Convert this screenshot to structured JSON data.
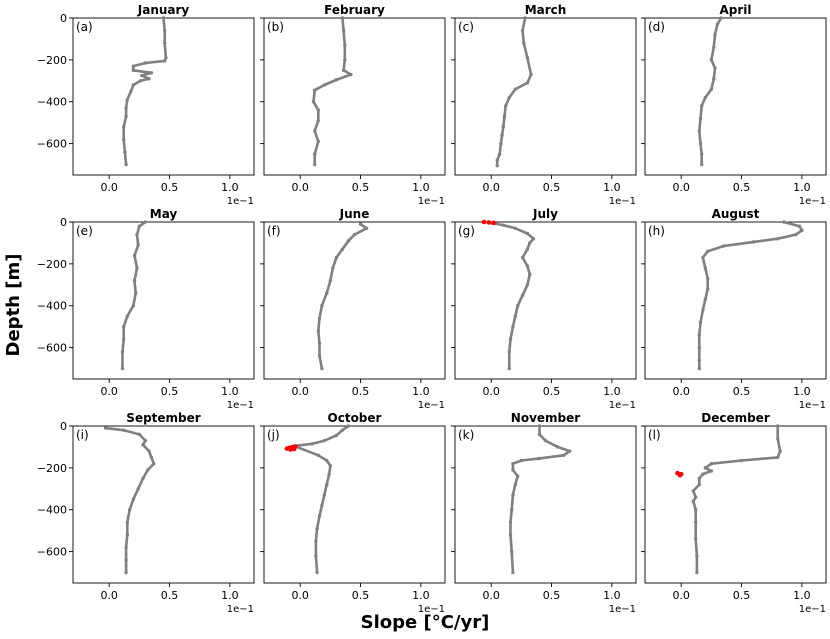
{
  "chart_data": {
    "type": "scatter",
    "xlabel": "Slope [°C/yr]",
    "ylabel": "Depth [m]",
    "xlim": [
      -0.03,
      0.12
    ],
    "ylim": [
      -750,
      0
    ],
    "xticks": [
      0.0,
      0.05,
      0.1
    ],
    "xtick_labels": [
      "0.0",
      "0.5",
      "1.0"
    ],
    "yticks": [
      0,
      -200,
      -400,
      -600
    ],
    "ytick_labels": [
      "0",
      "−200",
      "−400",
      "−600"
    ],
    "x_scale_label": "1e−1",
    "colors": {
      "normal": "#808080",
      "highlight": "#ff0000"
    },
    "panels": [
      {
        "letter": "(a)",
        "title": "January",
        "profile": [
          [
            0.045,
            0
          ],
          [
            0.046,
            -60
          ],
          [
            0.046,
            -120
          ],
          [
            0.047,
            -190
          ],
          [
            0.046,
            -205
          ],
          [
            0.03,
            -215
          ],
          [
            0.02,
            -230
          ],
          [
            0.02,
            -250
          ],
          [
            0.035,
            -262
          ],
          [
            0.027,
            -275
          ],
          [
            0.033,
            -290
          ],
          [
            0.026,
            -300
          ],
          [
            0.02,
            -320
          ],
          [
            0.018,
            -350
          ],
          [
            0.015,
            -390
          ],
          [
            0.014,
            -430
          ],
          [
            0.014,
            -470
          ],
          [
            0.012,
            -520
          ],
          [
            0.012,
            -580
          ],
          [
            0.013,
            -640
          ],
          [
            0.014,
            -700
          ]
        ],
        "highlight": []
      },
      {
        "letter": "(b)",
        "title": "February",
        "profile": [
          [
            0.035,
            0
          ],
          [
            0.036,
            -60
          ],
          [
            0.037,
            -130
          ],
          [
            0.037,
            -200
          ],
          [
            0.036,
            -250
          ],
          [
            0.042,
            -270
          ],
          [
            0.03,
            -295
          ],
          [
            0.02,
            -320
          ],
          [
            0.012,
            -345
          ],
          [
            0.011,
            -400
          ],
          [
            0.015,
            -440
          ],
          [
            0.015,
            -490
          ],
          [
            0.012,
            -540
          ],
          [
            0.015,
            -590
          ],
          [
            0.012,
            -650
          ],
          [
            0.012,
            -700
          ]
        ],
        "highlight": []
      },
      {
        "letter": "(c)",
        "title": "March",
        "profile": [
          [
            0.028,
            0
          ],
          [
            0.026,
            -60
          ],
          [
            0.027,
            -120
          ],
          [
            0.03,
            -190
          ],
          [
            0.033,
            -270
          ],
          [
            0.03,
            -310
          ],
          [
            0.02,
            -340
          ],
          [
            0.015,
            -380
          ],
          [
            0.012,
            -420
          ],
          [
            0.011,
            -470
          ],
          [
            0.01,
            -520
          ],
          [
            0.009,
            -560
          ],
          [
            0.008,
            -600
          ],
          [
            0.007,
            -650
          ],
          [
            0.005,
            -680
          ],
          [
            0.005,
            -705
          ]
        ],
        "highlight": []
      },
      {
        "letter": "(d)",
        "title": "April",
        "profile": [
          [
            0.033,
            0
          ],
          [
            0.03,
            -30
          ],
          [
            0.028,
            -80
          ],
          [
            0.027,
            -140
          ],
          [
            0.025,
            -200
          ],
          [
            0.028,
            -240
          ],
          [
            0.027,
            -290
          ],
          [
            0.025,
            -340
          ],
          [
            0.02,
            -380
          ],
          [
            0.017,
            -420
          ],
          [
            0.016,
            -480
          ],
          [
            0.015,
            -540
          ],
          [
            0.016,
            -600
          ],
          [
            0.017,
            -650
          ],
          [
            0.017,
            -700
          ]
        ],
        "highlight": []
      },
      {
        "letter": "(e)",
        "title": "May",
        "profile": [
          [
            0.03,
            0
          ],
          [
            0.025,
            -20
          ],
          [
            0.023,
            -60
          ],
          [
            0.024,
            -110
          ],
          [
            0.021,
            -160
          ],
          [
            0.023,
            -220
          ],
          [
            0.021,
            -280
          ],
          [
            0.022,
            -340
          ],
          [
            0.02,
            -400
          ],
          [
            0.015,
            -450
          ],
          [
            0.012,
            -500
          ],
          [
            0.012,
            -560
          ],
          [
            0.011,
            -620
          ],
          [
            0.011,
            -700
          ]
        ],
        "highlight": []
      },
      {
        "letter": "(f)",
        "title": "June",
        "profile": [
          [
            0.05,
            -10
          ],
          [
            0.055,
            -30
          ],
          [
            0.045,
            -60
          ],
          [
            0.04,
            -90
          ],
          [
            0.035,
            -130
          ],
          [
            0.03,
            -170
          ],
          [
            0.027,
            -220
          ],
          [
            0.025,
            -280
          ],
          [
            0.022,
            -340
          ],
          [
            0.018,
            -400
          ],
          [
            0.016,
            -460
          ],
          [
            0.015,
            -520
          ],
          [
            0.016,
            -580
          ],
          [
            0.016,
            -640
          ],
          [
            0.018,
            -700
          ]
        ],
        "highlight": []
      },
      {
        "letter": "(g)",
        "title": "July",
        "profile": [
          [
            0.0,
            -5
          ],
          [
            0.01,
            -15
          ],
          [
            0.02,
            -30
          ],
          [
            0.03,
            -55
          ],
          [
            0.035,
            -80
          ],
          [
            0.032,
            -100
          ],
          [
            0.03,
            -130
          ],
          [
            0.026,
            -170
          ],
          [
            0.03,
            -210
          ],
          [
            0.032,
            -250
          ],
          [
            0.03,
            -300
          ],
          [
            0.026,
            -350
          ],
          [
            0.022,
            -400
          ],
          [
            0.02,
            -450
          ],
          [
            0.018,
            -500
          ],
          [
            0.016,
            -560
          ],
          [
            0.015,
            -620
          ],
          [
            0.015,
            -700
          ]
        ],
        "highlight": [
          [
            -0.006,
            0
          ],
          [
            -0.002,
            -2
          ],
          [
            0.002,
            -4
          ]
        ]
      },
      {
        "letter": "(h)",
        "title": "August",
        "profile": [
          [
            0.085,
            0
          ],
          [
            0.098,
            -20
          ],
          [
            0.1,
            -40
          ],
          [
            0.095,
            -60
          ],
          [
            0.08,
            -80
          ],
          [
            0.06,
            -95
          ],
          [
            0.035,
            -115
          ],
          [
            0.022,
            -140
          ],
          [
            0.018,
            -170
          ],
          [
            0.02,
            -220
          ],
          [
            0.022,
            -270
          ],
          [
            0.022,
            -320
          ],
          [
            0.02,
            -370
          ],
          [
            0.018,
            -420
          ],
          [
            0.016,
            -480
          ],
          [
            0.015,
            -540
          ],
          [
            0.015,
            -600
          ],
          [
            0.015,
            -660
          ],
          [
            0.015,
            -700
          ]
        ],
        "highlight": []
      },
      {
        "letter": "(i)",
        "title": "September",
        "profile": [
          [
            -0.003,
            -10
          ],
          [
            0.012,
            -20
          ],
          [
            0.025,
            -40
          ],
          [
            0.03,
            -70
          ],
          [
            0.028,
            -90
          ],
          [
            0.033,
            -120
          ],
          [
            0.035,
            -150
          ],
          [
            0.037,
            -180
          ],
          [
            0.032,
            -210
          ],
          [
            0.028,
            -250
          ],
          [
            0.024,
            -300
          ],
          [
            0.02,
            -350
          ],
          [
            0.017,
            -400
          ],
          [
            0.015,
            -460
          ],
          [
            0.015,
            -520
          ],
          [
            0.014,
            -580
          ],
          [
            0.014,
            -640
          ],
          [
            0.014,
            -700
          ]
        ],
        "highlight": []
      },
      {
        "letter": "(j)",
        "title": "October",
        "profile": [
          [
            0.04,
            0
          ],
          [
            0.035,
            -20
          ],
          [
            0.03,
            -45
          ],
          [
            0.02,
            -70
          ],
          [
            0.01,
            -85
          ],
          [
            -0.005,
            -95
          ],
          [
            0.015,
            -140
          ],
          [
            0.022,
            -165
          ],
          [
            0.025,
            -190
          ],
          [
            0.024,
            -230
          ],
          [
            0.022,
            -280
          ],
          [
            0.02,
            -330
          ],
          [
            0.018,
            -380
          ],
          [
            0.016,
            -430
          ],
          [
            0.014,
            -490
          ],
          [
            0.013,
            -550
          ],
          [
            0.013,
            -620
          ],
          [
            0.014,
            -700
          ]
        ],
        "highlight": [
          [
            -0.004,
            -98
          ],
          [
            -0.007,
            -102
          ],
          [
            -0.009,
            -105
          ],
          [
            -0.011,
            -108
          ],
          [
            -0.008,
            -112
          ],
          [
            -0.005,
            -110
          ]
        ]
      },
      {
        "letter": "(k)",
        "title": "November",
        "profile": [
          [
            0.04,
            0
          ],
          [
            0.04,
            -40
          ],
          [
            0.045,
            -70
          ],
          [
            0.055,
            -100
          ],
          [
            0.065,
            -120
          ],
          [
            0.06,
            -140
          ],
          [
            0.04,
            -155
          ],
          [
            0.025,
            -165
          ],
          [
            0.018,
            -180
          ],
          [
            0.018,
            -210
          ],
          [
            0.022,
            -240
          ],
          [
            0.02,
            -280
          ],
          [
            0.018,
            -330
          ],
          [
            0.017,
            -400
          ],
          [
            0.016,
            -460
          ],
          [
            0.016,
            -520
          ],
          [
            0.017,
            -600
          ],
          [
            0.018,
            -700
          ]
        ],
        "highlight": []
      },
      {
        "letter": "(l)",
        "title": "December",
        "profile": [
          [
            0.08,
            0
          ],
          [
            0.08,
            -60
          ],
          [
            0.082,
            -120
          ],
          [
            0.08,
            -150
          ],
          [
            0.05,
            -165
          ],
          [
            0.025,
            -180
          ],
          [
            0.02,
            -200
          ],
          [
            0.025,
            -215
          ],
          [
            0.018,
            -230
          ],
          [
            0.015,
            -250
          ],
          [
            0.015,
            -280
          ],
          [
            0.01,
            -310
          ],
          [
            0.012,
            -340
          ],
          [
            0.01,
            -360
          ],
          [
            0.012,
            -400
          ],
          [
            0.012,
            -460
          ],
          [
            0.012,
            -540
          ],
          [
            0.013,
            -620
          ],
          [
            0.013,
            -700
          ]
        ],
        "highlight": [
          [
            -0.003,
            -225
          ],
          [
            0.0,
            -230
          ],
          [
            -0.001,
            -235
          ]
        ]
      }
    ]
  }
}
